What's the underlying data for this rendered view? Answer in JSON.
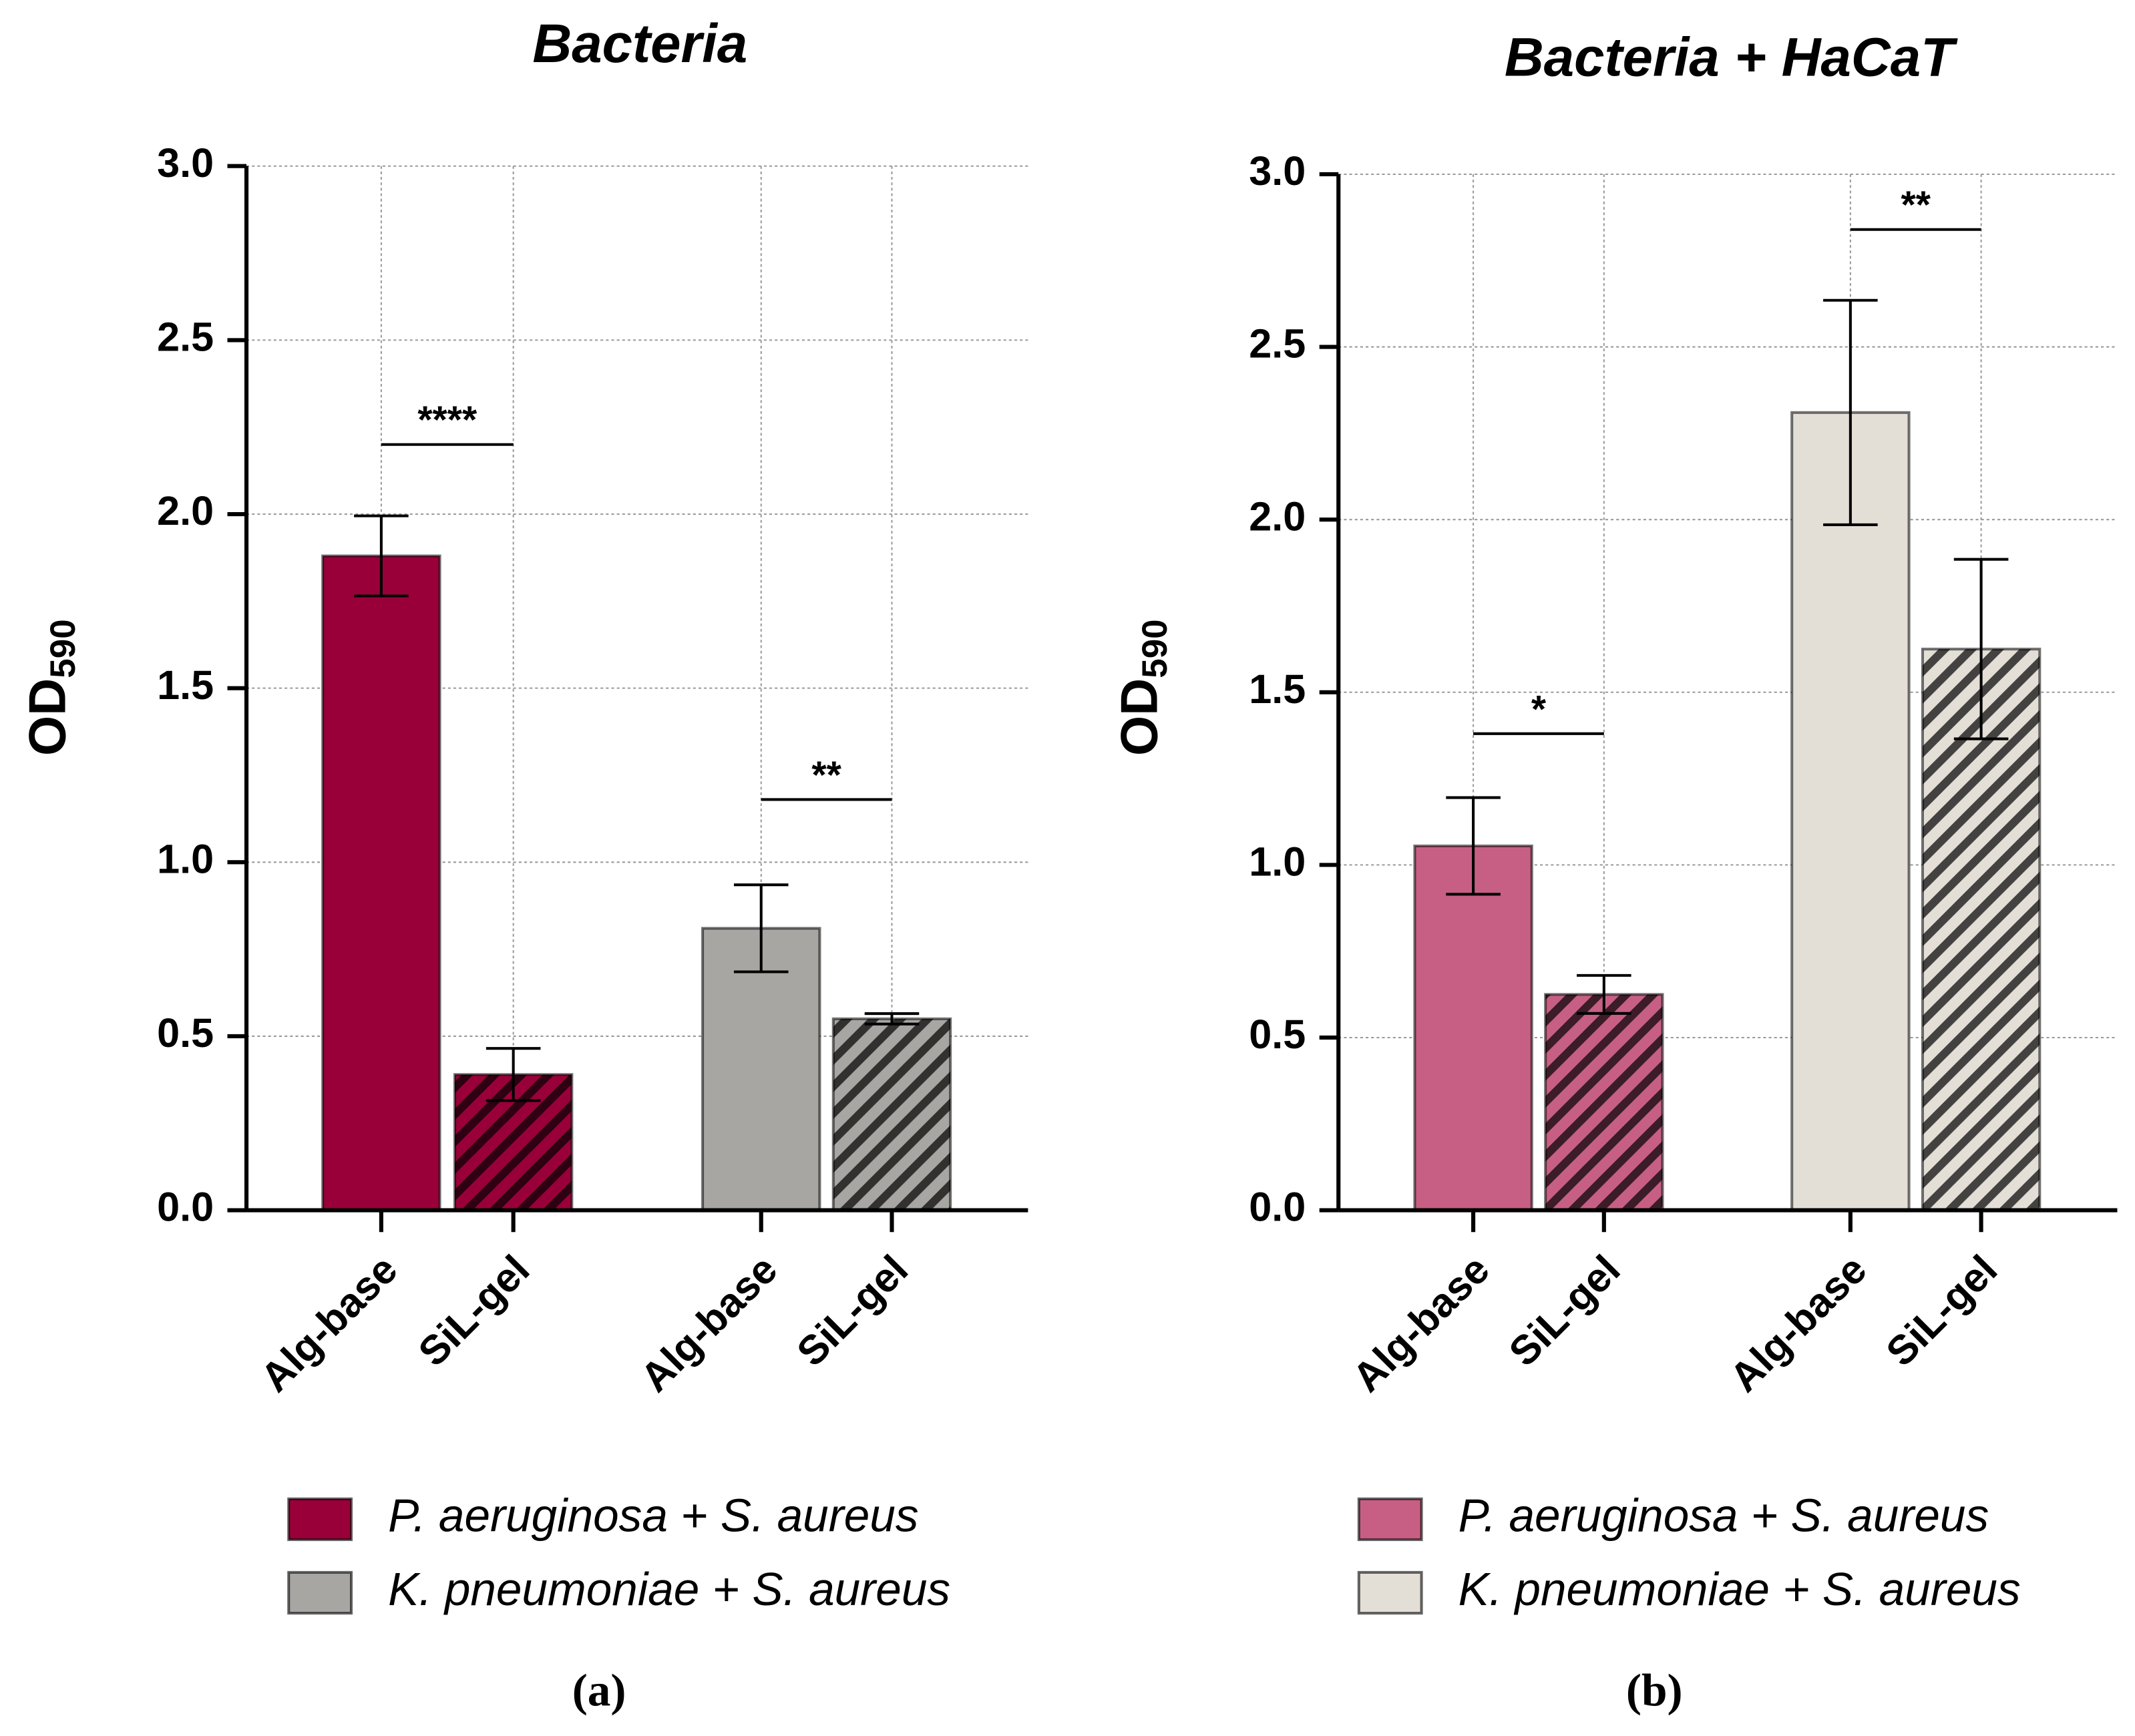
{
  "chart_data": [
    {
      "type": "bar",
      "title": "Bacteria",
      "panel_label": "(a)",
      "ylabel_main": "OD",
      "ylabel_subscript": "590",
      "categories": [
        "Alg-base",
        "SiL-gel",
        "Alg-base",
        "SiL-gel"
      ],
      "hatched": [
        false,
        true,
        false,
        true
      ],
      "series": [
        {
          "name": "P. aeruginosa + S. aureus",
          "color": "#990039",
          "values": [
            1.88,
            0.39,
            null,
            null
          ],
          "errors": [
            0.115,
            0.075,
            null,
            null
          ]
        },
        {
          "name": "K. pneumoniae + S. aureus",
          "color": "#a8a6a2",
          "values": [
            null,
            null,
            0.81,
            0.55
          ],
          "errors": [
            null,
            null,
            0.125,
            0.015
          ]
        }
      ],
      "annotations": [
        {
          "text": "****",
          "from": 0,
          "to": 1,
          "y": 2.2
        },
        {
          "text": "**",
          "from": 2,
          "to": 3,
          "y": 1.18
        }
      ],
      "ylim": [
        0,
        3
      ],
      "yticks": [
        {
          "value": 0,
          "label": "0.0"
        },
        0.5,
        {
          "value": 1,
          "label": "1.0"
        },
        1.5,
        {
          "value": 2,
          "label": "2.0"
        },
        2.5,
        {
          "value": 3,
          "label": "3.0"
        }
      ],
      "grid": true
    },
    {
      "type": "bar",
      "title": "Bacteria + HaCaT",
      "panel_label": "(b)",
      "ylabel_main": "OD",
      "ylabel_subscript": "590",
      "categories": [
        "Alg-base",
        "SiL-gel",
        "Alg-base",
        "SiL-gel"
      ],
      "hatched": [
        false,
        true,
        false,
        true
      ],
      "series": [
        {
          "name": "P. aeruginosa + S. aureus",
          "color": "#c75f84",
          "values": [
            1.055,
            0.625,
            null,
            null
          ],
          "errors": [
            0.14,
            0.055,
            null,
            null
          ]
        },
        {
          "name": "K. pneumoniae + S. aureus",
          "color": "#e3dfd7",
          "values": [
            null,
            null,
            2.31,
            1.625
          ],
          "errors": [
            null,
            null,
            0.325,
            0.26
          ]
        }
      ],
      "annotations": [
        {
          "text": "*",
          "from": 0,
          "to": 1,
          "y": 1.38
        },
        {
          "text": "**",
          "from": 2,
          "to": 3,
          "y": 2.84
        }
      ],
      "ylim": [
        0,
        3
      ],
      "yticks": [
        {
          "value": 0,
          "label": "0.0"
        },
        0.5,
        {
          "value": 1,
          "label": "1.0"
        },
        1.5,
        {
          "value": 2,
          "label": "2.0"
        },
        2.5,
        {
          "value": 3,
          "label": "3.0"
        }
      ],
      "grid": true
    }
  ]
}
